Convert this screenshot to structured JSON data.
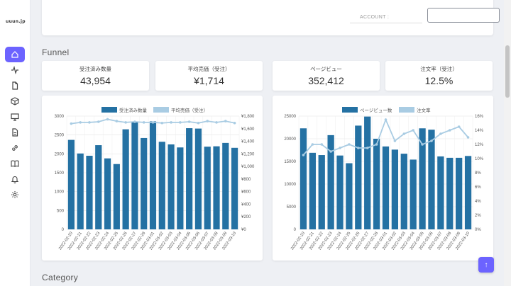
{
  "app": {
    "logo_text": "uuun.jp"
  },
  "sidebar": {
    "items": [
      {
        "icon": "home-icon",
        "active": true
      },
      {
        "icon": "activity-icon",
        "active": false
      },
      {
        "icon": "file-icon",
        "active": false
      },
      {
        "icon": "box-icon",
        "active": false
      },
      {
        "icon": "monitor-icon",
        "active": false
      },
      {
        "icon": "document-icon",
        "active": false
      },
      {
        "icon": "link-icon",
        "active": false
      },
      {
        "icon": "book-icon",
        "active": false
      },
      {
        "icon": "bell-icon",
        "active": false
      },
      {
        "icon": "settings-icon",
        "active": false
      }
    ]
  },
  "filters": {
    "account_label": "ACCOUNT :",
    "account_value": ""
  },
  "sections": {
    "funnel": "Funnel",
    "category": "Category"
  },
  "kpis": [
    {
      "label": "受注済み数量",
      "value": "43,954"
    },
    {
      "label": "平均売価（受注）",
      "value": "¥1,714"
    },
    {
      "label": "ページビュー",
      "value": "352,412"
    },
    {
      "label": "注文率（受注）",
      "value": "12.5%"
    }
  ],
  "colors": {
    "bar": "#2471a3",
    "line": "#a9cce3",
    "accent": "#6c63ff"
  },
  "chart_data": [
    {
      "type": "bar",
      "categories": [
        "2022-02-20",
        "2022-02-21",
        "2022-02-22",
        "2022-02-23",
        "2022-02-24",
        "2022-02-25",
        "2022-02-26",
        "2022-02-27",
        "2022-02-28",
        "2022-03-01",
        "2022-03-02",
        "2022-03-03",
        "2022-03-04",
        "2022-03-05",
        "2022-03-06",
        "2022-03-07",
        "2022-03-08",
        "2022-03-09",
        "2022-03-10"
      ],
      "series": [
        {
          "name": "受注済み数量",
          "type": "bar",
          "axis": "left",
          "values": [
            2370,
            2010,
            1950,
            2230,
            1880,
            1730,
            2650,
            2860,
            2420,
            2860,
            2320,
            2250,
            2170,
            2680,
            2670,
            2190,
            2200,
            2290,
            2160
          ]
        },
        {
          "name": "平均売価（受注）",
          "type": "line",
          "axis": "right",
          "values": [
            1680,
            1700,
            1700,
            1710,
            1750,
            1720,
            1700,
            1710,
            1700,
            1700,
            1690,
            1700,
            1700,
            1710,
            1690,
            1720,
            1700,
            1720,
            1690
          ]
        }
      ],
      "ylim_left": [
        0,
        3000
      ],
      "ylim_right": [
        0,
        1800
      ],
      "left_ticks": [
        "0",
        "500",
        "1000",
        "1500",
        "2000",
        "2500",
        "3000"
      ],
      "right_ticks": [
        "¥0",
        "¥200",
        "¥400",
        "¥600",
        "¥800",
        "¥1,000",
        "¥1,200",
        "¥1,400",
        "¥1,600",
        "¥1,800"
      ],
      "legend": "top"
    },
    {
      "type": "bar",
      "categories": [
        "2022-02-20",
        "2022-02-21",
        "2022-02-22",
        "2022-02-23",
        "2022-02-24",
        "2022-02-25",
        "2022-02-26",
        "2022-02-27",
        "2022-02-28",
        "2022-03-01",
        "2022-03-02",
        "2022-03-03",
        "2022-03-04",
        "2022-03-05",
        "2022-03-06",
        "2022-03-07",
        "2022-03-08",
        "2022-03-09",
        "2022-03-10"
      ],
      "series": [
        {
          "name": "ページビュー数",
          "type": "bar",
          "axis": "left",
          "values": [
            22300,
            16900,
            16400,
            20800,
            16300,
            14600,
            22900,
            24900,
            20000,
            18300,
            17600,
            16700,
            15400,
            22300,
            22000,
            16100,
            15800,
            15800,
            16200
          ]
        },
        {
          "name": "注文率",
          "type": "line",
          "axis": "right",
          "values": [
            10.5,
            12.0,
            12.0,
            11.0,
            11.5,
            12.0,
            11.5,
            11.5,
            12.0,
            15.5,
            12.5,
            13.5,
            14.0,
            12.0,
            12.5,
            13.5,
            14.0,
            14.5,
            13.0
          ]
        }
      ],
      "ylim_left": [
        0,
        25000
      ],
      "ylim_right": [
        0,
        16
      ],
      "left_ticks": [
        "0",
        "5000",
        "10000",
        "15000",
        "20000",
        "25000"
      ],
      "right_ticks": [
        "0%",
        "2%",
        "4%",
        "6%",
        "8%",
        "10%",
        "12%",
        "14%",
        "16%"
      ],
      "legend": "top"
    }
  ],
  "fab": {
    "label": "↑"
  }
}
